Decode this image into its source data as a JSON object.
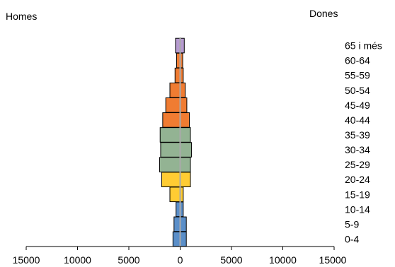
{
  "chart_data": {
    "type": "bar",
    "orientation": "horizontal",
    "subtype": "population-pyramid",
    "left_label": "Homes",
    "right_label": "Dones",
    "categories": [
      "0-4",
      "5-9",
      "10-14",
      "15-19",
      "20-24",
      "25-29",
      "30-34",
      "35-39",
      "40-44",
      "45-49",
      "50-54",
      "55-59",
      "60-64",
      "65 i més"
    ],
    "series": [
      {
        "name": "Homes",
        "side": "left",
        "values": [
          700,
          600,
          400,
          1000,
          1800,
          2000,
          1900,
          1950,
          1700,
          1400,
          1000,
          500,
          350,
          450
        ]
      },
      {
        "name": "Dones",
        "side": "right",
        "values": [
          600,
          600,
          300,
          300,
          1000,
          1000,
          1100,
          1000,
          900,
          650,
          500,
          300,
          250,
          400
        ]
      }
    ],
    "group_colors": {
      "0-14": "#5b8fc9",
      "15-24": "#ffcc33",
      "25-39": "#93b393",
      "40-64": "#f07c32",
      "65+": "#b69bd0"
    },
    "bar_color_by_category": [
      "#5b8fc9",
      "#5b8fc9",
      "#5b8fc9",
      "#ffcc33",
      "#ffcc33",
      "#93b393",
      "#93b393",
      "#93b393",
      "#f07c32",
      "#f07c32",
      "#f07c32",
      "#f07c32",
      "#f07c32",
      "#b69bd0"
    ],
    "center_line_color": "#aaaaaa",
    "xlim": [
      -15000,
      15000
    ],
    "xticks": [
      -15000,
      -10000,
      -5000,
      0,
      5000,
      10000,
      15000
    ],
    "xtick_labels": [
      "15000",
      "10000",
      "5000",
      "0",
      "5000",
      "10000",
      "15000"
    ],
    "legend": "none",
    "grid": false
  }
}
